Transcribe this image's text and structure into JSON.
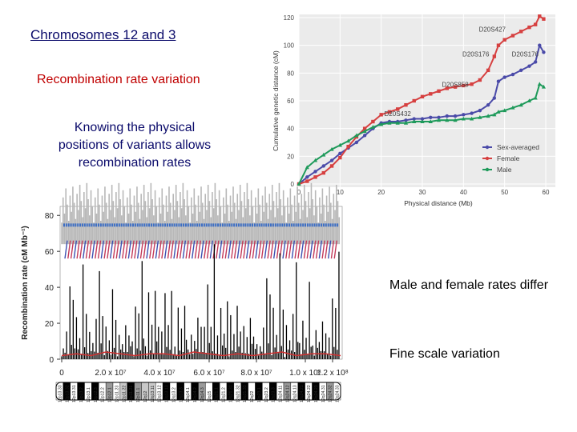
{
  "slide": {
    "title": "Chromosomes 12  and 3",
    "subtitle": "Recombination rate variation",
    "knowing": "Knowing the physical positions of variants allows recombination rates",
    "male_female": "Male and female rates differ",
    "fine_scale": "Fine scale variation"
  },
  "chart_data": [
    {
      "type": "line",
      "xlabel": "Physical distance (Mb)",
      "ylabel": "Cumulative genetic distance (cM)",
      "xlim": [
        0,
        60
      ],
      "ylim": [
        0,
        120
      ],
      "xticks": [
        "0",
        "10",
        "20",
        "30",
        "40",
        "50",
        "60"
      ],
      "yticks": [
        "0",
        "20",
        "40",
        "60",
        "80",
        "100",
        "120"
      ],
      "legend_position": "bottom-right",
      "series": [
        {
          "name": "Sex-averaged",
          "color": "#4a4aa8",
          "x": [
            0,
            2,
            4,
            6,
            8,
            10,
            12,
            14,
            16,
            18,
            20,
            22,
            24,
            26,
            28,
            30,
            32,
            34,
            36,
            38,
            40,
            42,
            44,
            46,
            47.5,
            48.5,
            50,
            52,
            54,
            56,
            57.5,
            58.5,
            59.5
          ],
          "y": [
            0,
            5,
            9,
            13,
            17,
            22,
            26,
            30,
            35,
            40,
            44,
            45,
            45,
            46,
            47,
            47,
            48,
            48,
            49,
            49,
            50,
            51,
            53,
            57,
            62,
            74,
            77,
            79,
            82,
            85,
            88,
            100,
            95
          ]
        },
        {
          "name": "Female",
          "color": "#d64040",
          "x": [
            0,
            2,
            4,
            6,
            8,
            10,
            12,
            14,
            16,
            18,
            20,
            22,
            24,
            26,
            28,
            30,
            32,
            34,
            36,
            38,
            40,
            42,
            44,
            46,
            47.5,
            48.5,
            50,
            52,
            54,
            56,
            57.5,
            58.5,
            59.5
          ],
          "y": [
            0,
            2,
            5,
            8,
            13,
            19,
            27,
            34,
            40,
            45,
            50,
            52,
            54,
            57,
            60,
            63,
            65,
            67,
            69,
            70,
            71,
            72,
            75,
            82,
            92,
            100,
            104,
            107,
            110,
            113,
            115,
            121,
            119
          ]
        },
        {
          "name": "Male",
          "color": "#1e9a5a",
          "x": [
            0,
            2,
            4,
            6,
            8,
            10,
            12,
            14,
            16,
            18,
            20,
            22,
            24,
            26,
            28,
            30,
            32,
            34,
            36,
            38,
            40,
            42,
            44,
            46,
            47.5,
            48.5,
            50,
            52,
            54,
            56,
            57.5,
            58.5,
            59.5
          ],
          "y": [
            0,
            12,
            17,
            21,
            25,
            28,
            31,
            35,
            38,
            41,
            43,
            44,
            44,
            44,
            45,
            45,
            45,
            46,
            46,
            46,
            47,
            47,
            48,
            49,
            50,
            52,
            53,
            55,
            57,
            60,
            62,
            72,
            70
          ]
        }
      ],
      "annotations": [
        {
          "label": "D20S427",
          "x": 47,
          "y": 110
        },
        {
          "label": "D20S176",
          "x": 43,
          "y": 92
        },
        {
          "label": "D20S176",
          "x": 55,
          "y": 92
        },
        {
          "label": "D20S858",
          "x": 38,
          "y": 70
        },
        {
          "label": "D20S432",
          "x": 24,
          "y": 49
        }
      ]
    },
    {
      "type": "line",
      "ylabel": "Recombination rate (cM Mb⁻¹)",
      "xlim": [
        0,
        135000000
      ],
      "ylim": [
        0,
        85
      ],
      "xticks": [
        "0",
        "2.0 x 10⁷",
        "4.0 x 10⁷",
        "6.0 x 10⁷",
        "8.0 x 10⁷",
        "1.0 x 10⁸",
        "1.2 x 10⁸"
      ],
      "yticks": [
        "0",
        "20",
        "40",
        "60",
        "80"
      ],
      "series": [
        {
          "name": "",
          "color": "#000000",
          "description_values": [
            4,
            12,
            6,
            22,
            3,
            45,
            8,
            30,
            5,
            52,
            10,
            18,
            4,
            62,
            7,
            24,
            3,
            38,
            9,
            15,
            6,
            28,
            4,
            49,
            8,
            20,
            5,
            33,
            7,
            14,
            3,
            41,
            6,
            19,
            4,
            27,
            9,
            12,
            5,
            21
          ]
        },
        {
          "name": "",
          "color": "#d03030",
          "description_values": [
            2,
            3,
            2,
            4,
            3,
            2,
            3,
            3,
            2,
            4,
            3,
            2,
            3,
            2,
            3,
            4,
            2,
            3,
            3,
            2
          ]
        }
      ]
    }
  ],
  "ideogram": {
    "bands": [
      "12p13.33",
      "12p13.32",
      "12p13.31",
      "12p13.2",
      "12p13.1",
      "12p12.3",
      "12p12.2",
      "12p12.1",
      "12p11.23",
      "12p11.22",
      "12p11.21",
      "12p11.1",
      "12q12",
      "12q13.11",
      "12q13.12",
      "12q13.13",
      "12q13.2",
      "12q13.3",
      "12q14.1",
      "12q14.2",
      "12q14.3",
      "12q15",
      "12q21.1",
      "12q21.2",
      "12q21.31",
      "12q21.32",
      "12q21.33",
      "12q22",
      "12q23.1",
      "12q23.2",
      "12q23.3",
      "12q24.11",
      "12q24.12",
      "12q24.13",
      "12q24.21",
      "12q24.22",
      "12q24.23",
      "12q24.31",
      "12q24.32",
      "12q24.33"
    ],
    "colors": [
      "#ffffff",
      "#000000",
      "#9a9a9a",
      "#c8c8c8"
    ]
  }
}
